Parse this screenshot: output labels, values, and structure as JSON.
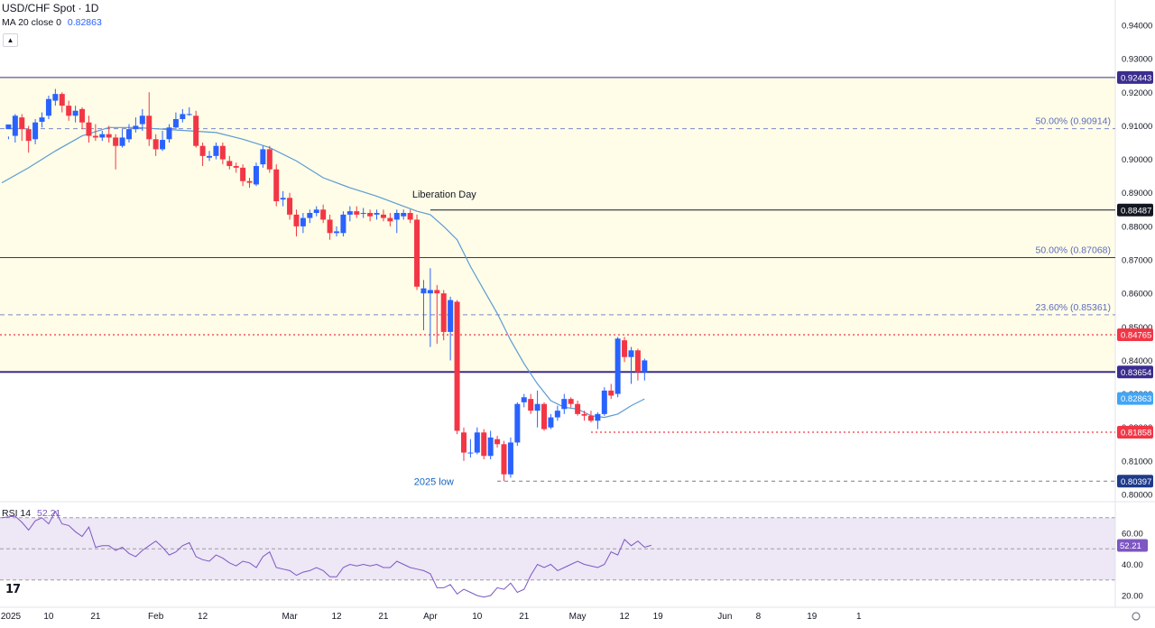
{
  "header": {
    "title": "USD/CHF Spot · 1D",
    "ma_label": "MA 20 close 0",
    "ma_value": "0.82863",
    "collapse_icon": "chevron-up-icon"
  },
  "rsi_legend": {
    "label": "RSI 14",
    "value": "52.21"
  },
  "colors": {
    "up": "#2962ff",
    "down": "#f23645",
    "ma": "#5b9bd5",
    "rsi": "#7e57c2",
    "zone_fill": "#fffde7",
    "rsi_band": "#ede7f6",
    "level_line": "#3a2d8f",
    "fib_line": "#5c6bc0",
    "dotted_red": "#f23645"
  },
  "chart_data": [
    {
      "type": "candlestick",
      "title": "USD/CHF Spot · 1D",
      "ylim": [
        0.798,
        0.944
      ],
      "y_ticks": [
        "0.94000",
        "0.93000",
        "0.92000",
        "0.91000",
        "0.90000",
        "0.89000",
        "0.88000",
        "0.87000",
        "0.86000",
        "0.85000",
        "0.84000",
        "0.83000",
        "0.82000",
        "0.81000",
        "0.80000"
      ],
      "y_tick_values": [
        0.94,
        0.93,
        0.92,
        0.91,
        0.9,
        0.89,
        0.88,
        0.87,
        0.86,
        0.85,
        0.84,
        0.83,
        0.82,
        0.81,
        0.8
      ],
      "x_ticks": [
        {
          "label": "2025",
          "d": -1
        },
        {
          "label": "10",
          "d": 6
        },
        {
          "label": "21",
          "d": 13
        },
        {
          "label": "Feb",
          "d": 22
        },
        {
          "label": "12",
          "d": 29
        },
        {
          "label": "Mar",
          "d": 42
        },
        {
          "label": "12",
          "d": 49
        },
        {
          "label": "21",
          "d": 56
        },
        {
          "label": "Apr",
          "d": 63
        },
        {
          "label": "10",
          "d": 70
        },
        {
          "label": "21",
          "d": 77
        },
        {
          "label": "May",
          "d": 85
        },
        {
          "label": "12",
          "d": 92
        },
        {
          "label": "19",
          "d": 97
        },
        {
          "label": "Jun",
          "d": 107
        },
        {
          "label": "8",
          "d": 112
        },
        {
          "label": "19",
          "d": 120
        },
        {
          "label": "1",
          "d": 127
        }
      ],
      "x_range": [
        -1,
        128
      ],
      "candles": [
        [
          0.909,
          0.9104,
          0.9068,
          0.906
        ],
        [
          0.907,
          0.913,
          0.9135,
          0.905
        ],
        [
          0.9125,
          0.909,
          0.9135,
          0.9055
        ],
        [
          0.909,
          0.9055,
          0.91,
          0.902
        ],
        [
          0.906,
          0.911,
          0.912,
          0.9045
        ],
        [
          0.9112,
          0.9125,
          0.914,
          0.9095
        ],
        [
          0.913,
          0.918,
          0.919,
          0.912
        ],
        [
          0.9175,
          0.9195,
          0.921,
          0.916
        ],
        [
          0.9195,
          0.916,
          0.92,
          0.914
        ],
        [
          0.916,
          0.913,
          0.9175,
          0.9115
        ],
        [
          0.913,
          0.9145,
          0.916,
          0.911
        ],
        [
          0.915,
          0.911,
          0.9155,
          0.909
        ],
        [
          0.911,
          0.907,
          0.913,
          0.905
        ],
        [
          0.907,
          0.9065,
          0.9105,
          0.9055
        ],
        [
          0.9065,
          0.9075,
          0.9085,
          0.9055
        ],
        [
          0.9075,
          0.9065,
          0.91,
          0.905
        ],
        [
          0.9065,
          0.904,
          0.9075,
          0.897
        ],
        [
          0.904,
          0.9065,
          0.909,
          0.9035
        ],
        [
          0.906,
          0.909,
          0.9105,
          0.905
        ],
        [
          0.909,
          0.91,
          0.9125,
          0.908
        ],
        [
          0.9105,
          0.913,
          0.915,
          0.9085
        ],
        [
          0.913,
          0.906,
          0.92,
          0.904
        ],
        [
          0.906,
          0.903,
          0.9075,
          0.901
        ],
        [
          0.903,
          0.9058,
          0.9085,
          0.9025
        ],
        [
          0.906,
          0.9095,
          0.9105,
          0.905
        ],
        [
          0.9095,
          0.912,
          0.914,
          0.909
        ],
        [
          0.912,
          0.9135,
          0.915,
          0.911
        ],
        [
          0.9135,
          0.9135,
          0.9155,
          0.913
        ],
        [
          0.913,
          0.904,
          0.9145,
          0.9035
        ],
        [
          0.904,
          0.901,
          0.905,
          0.898
        ],
        [
          0.9005,
          0.901,
          0.9025,
          0.8995
        ],
        [
          0.901,
          0.904,
          0.905,
          0.9
        ],
        [
          0.904,
          0.9,
          0.905,
          0.8985
        ],
        [
          0.8995,
          0.898,
          0.901,
          0.897
        ],
        [
          0.898,
          0.8975,
          0.899,
          0.896
        ],
        [
          0.8975,
          0.8935,
          0.8985,
          0.892
        ],
        [
          0.8935,
          0.893,
          0.8945,
          0.8915
        ],
        [
          0.8925,
          0.898,
          0.899,
          0.892
        ],
        [
          0.8985,
          0.903,
          0.904,
          0.8975
        ],
        [
          0.903,
          0.897,
          0.904,
          0.896
        ],
        [
          0.897,
          0.8875,
          0.8985,
          0.886
        ],
        [
          0.888,
          0.8885,
          0.8905,
          0.886
        ],
        [
          0.8885,
          0.8835,
          0.89,
          0.882
        ],
        [
          0.8835,
          0.88,
          0.885,
          0.877
        ],
        [
          0.88,
          0.8825,
          0.884,
          0.878
        ],
        [
          0.8825,
          0.884,
          0.885,
          0.881
        ],
        [
          0.884,
          0.885,
          0.886,
          0.883
        ],
        [
          0.885,
          0.882,
          0.8865,
          0.881
        ],
        [
          0.882,
          0.878,
          0.8835,
          0.876
        ],
        [
          0.878,
          0.8785,
          0.88,
          0.877
        ],
        [
          0.878,
          0.8835,
          0.8845,
          0.877
        ],
        [
          0.8835,
          0.8845,
          0.886,
          0.8815
        ],
        [
          0.8845,
          0.8835,
          0.886,
          0.8825
        ],
        [
          0.884,
          0.884,
          0.8855,
          0.8825
        ],
        [
          0.884,
          0.883,
          0.885,
          0.8815
        ],
        [
          0.8835,
          0.884,
          0.885,
          0.882
        ],
        [
          0.8835,
          0.8825,
          0.885,
          0.8815
        ],
        [
          0.8825,
          0.8815,
          0.884,
          0.88
        ],
        [
          0.882,
          0.884,
          0.885,
          0.878
        ],
        [
          0.883,
          0.884,
          0.885,
          0.882
        ],
        [
          0.884,
          0.882,
          0.885,
          0.881
        ],
        [
          0.882,
          0.862,
          0.8835,
          0.861
        ],
        [
          0.86,
          0.8615,
          0.864,
          0.849
        ],
        [
          0.86,
          0.861,
          0.8675,
          0.844
        ],
        [
          0.861,
          0.86,
          0.8625,
          0.845
        ],
        [
          0.86,
          0.8485,
          0.861,
          0.846
        ],
        [
          0.8485,
          0.858,
          0.859,
          0.84
        ],
        [
          0.8575,
          0.819,
          0.858,
          0.818
        ],
        [
          0.8185,
          0.8125,
          0.82,
          0.81
        ],
        [
          0.8125,
          0.8125,
          0.8165,
          0.811
        ],
        [
          0.8125,
          0.8185,
          0.82,
          0.812
        ],
        [
          0.8185,
          0.8115,
          0.8195,
          0.8105
        ],
        [
          0.8115,
          0.817,
          0.819,
          0.8105
        ],
        [
          0.8165,
          0.815,
          0.8175,
          0.814
        ],
        [
          0.815,
          0.806,
          0.816,
          0.804
        ],
        [
          0.806,
          0.8155,
          0.817,
          0.805
        ],
        [
          0.8155,
          0.827,
          0.8275,
          0.8145
        ],
        [
          0.8275,
          0.829,
          0.83,
          0.826
        ],
        [
          0.8285,
          0.825,
          0.83,
          0.824
        ],
        [
          0.825,
          0.827,
          0.831,
          0.82
        ],
        [
          0.827,
          0.8195,
          0.8275,
          0.819
        ],
        [
          0.82,
          0.823,
          0.824,
          0.8195
        ],
        [
          0.823,
          0.825,
          0.8265,
          0.822
        ],
        [
          0.8255,
          0.8285,
          0.83,
          0.824
        ],
        [
          0.8285,
          0.827,
          0.829,
          0.826
        ],
        [
          0.827,
          0.824,
          0.828,
          0.8235
        ],
        [
          0.824,
          0.8235,
          0.825,
          0.822
        ],
        [
          0.8235,
          0.822,
          0.825,
          0.8215
        ],
        [
          0.822,
          0.824,
          0.8245,
          0.8195
        ],
        [
          0.824,
          0.831,
          0.832,
          0.8235
        ],
        [
          0.831,
          0.8295,
          0.833,
          0.8285
        ],
        [
          0.83,
          0.8465,
          0.847,
          0.829
        ],
        [
          0.846,
          0.841,
          0.847,
          0.8395
        ],
        [
          0.841,
          0.843,
          0.844,
          0.833
        ],
        [
          0.843,
          0.8365,
          0.8435,
          0.834
        ],
        [
          0.8365,
          0.84,
          0.8405,
          0.834
        ]
      ],
      "ma20_points": [
        [
          -1,
          0.893
        ],
        [
          3,
          0.8975
        ],
        [
          7,
          0.9025
        ],
        [
          11,
          0.907
        ],
        [
          15,
          0.9095
        ],
        [
          19,
          0.9095
        ],
        [
          23,
          0.909
        ],
        [
          27,
          0.9085
        ],
        [
          31,
          0.908
        ],
        [
          35,
          0.906
        ],
        [
          39,
          0.9035
        ],
        [
          43,
          0.8995
        ],
        [
          47,
          0.8945
        ],
        [
          51,
          0.8915
        ],
        [
          55,
          0.889
        ],
        [
          59,
          0.886
        ],
        [
          61,
          0.8845
        ],
        [
          63,
          0.8835
        ],
        [
          65,
          0.88
        ],
        [
          67,
          0.876
        ],
        [
          69,
          0.868
        ],
        [
          71,
          0.861
        ],
        [
          73,
          0.854
        ],
        [
          75,
          0.846
        ],
        [
          77,
          0.839
        ],
        [
          79,
          0.833
        ],
        [
          81,
          0.828
        ],
        [
          83,
          0.826
        ],
        [
          85,
          0.8255
        ],
        [
          87,
          0.8235
        ],
        [
          89,
          0.823
        ],
        [
          91,
          0.824
        ],
        [
          93,
          0.8265
        ],
        [
          95,
          0.8285
        ]
      ],
      "levels": [
        {
          "value": 0.92443,
          "label": "0.92443",
          "kind": "solid",
          "color": "#3a2d8f",
          "tag_bg": "#3a2d8f",
          "x_start": -1
        },
        {
          "value": 0.88487,
          "label": "0.88487",
          "kind": "solid",
          "color": "#131722",
          "tag_bg": "#131722",
          "x_start": 63
        },
        {
          "value": 0.87068,
          "label": "",
          "kind": "solid",
          "color": "#3a2d8f",
          "tag_bg": "",
          "x_start": -1
        },
        {
          "value": 0.84765,
          "label": "0.84765",
          "kind": "dotted",
          "color": "#f23645",
          "tag_bg": "#f23645",
          "x_start": -1
        },
        {
          "value": 0.83654,
          "label": "0.83654",
          "kind": "thick",
          "color": "#3a2d8f",
          "tag_bg": "#3a2d8f",
          "x_start": -1
        },
        {
          "value": 0.81858,
          "label": "0.81858",
          "kind": "dotted",
          "color": "#f23645",
          "tag_bg": "#f23645",
          "x_start": 87
        },
        {
          "value": 0.80397,
          "label": "0.80397",
          "kind": "dashed",
          "color": "#787b86",
          "tag_bg": "#1e3a8a",
          "x_start": 73
        }
      ],
      "fib_levels": [
        {
          "value": 0.90914,
          "text": "50.00% (0.90914)"
        },
        {
          "value": 0.87068,
          "text": "50.00% (0.87068)"
        },
        {
          "value": 0.85361,
          "text": "23.60% (0.85361)"
        }
      ],
      "zones": [
        {
          "from": 0.92443,
          "to": 0.87068
        },
        {
          "from": 0.87068,
          "to": 0.83654
        }
      ],
      "annotations": [
        {
          "text": "Liberation Day",
          "x": 63,
          "y": 0.887
        },
        {
          "text": "2025 low",
          "x": 70,
          "y": 0.80397
        }
      ],
      "ma_tag": {
        "value": 0.82863,
        "label": "0.82863"
      }
    },
    {
      "type": "line",
      "title": "RSI 14",
      "ylim": [
        15,
        75
      ],
      "y_ticks": [
        "60.00",
        "40.00",
        "20.00"
      ],
      "y_tick_values": [
        60,
        40,
        20
      ],
      "band": [
        30,
        70
      ],
      "midline": 50,
      "last_value": 52.21,
      "last_label": "52.21",
      "points": [
        [
          -1,
          70
        ],
        [
          1,
          71
        ],
        [
          2,
          67
        ],
        [
          3,
          62
        ],
        [
          4,
          68
        ],
        [
          5,
          70
        ],
        [
          6,
          66
        ],
        [
          7,
          74
        ],
        [
          8,
          66
        ],
        [
          9,
          65
        ],
        [
          10,
          61
        ],
        [
          11,
          58
        ],
        [
          12,
          64
        ],
        [
          13,
          51
        ],
        [
          14,
          52
        ],
        [
          15,
          52
        ],
        [
          16,
          49
        ],
        [
          17,
          51
        ],
        [
          18,
          47
        ],
        [
          19,
          45
        ],
        [
          20,
          49
        ],
        [
          21,
          52
        ],
        [
          22,
          55
        ],
        [
          23,
          51
        ],
        [
          24,
          46
        ],
        [
          25,
          48
        ],
        [
          26,
          52
        ],
        [
          27,
          54
        ],
        [
          28,
          45
        ],
        [
          29,
          43
        ],
        [
          30,
          42
        ],
        [
          31,
          46
        ],
        [
          32,
          44
        ],
        [
          33,
          41
        ],
        [
          34,
          39
        ],
        [
          35,
          42
        ],
        [
          36,
          41
        ],
        [
          37,
          38
        ],
        [
          38,
          45
        ],
        [
          39,
          48
        ],
        [
          40,
          38
        ],
        [
          41,
          37
        ],
        [
          42,
          36
        ],
        [
          43,
          33
        ],
        [
          44,
          35
        ],
        [
          45,
          36
        ],
        [
          46,
          38
        ],
        [
          47,
          36
        ],
        [
          48,
          32
        ],
        [
          49,
          32
        ],
        [
          50,
          38
        ],
        [
          51,
          40
        ],
        [
          52,
          39
        ],
        [
          53,
          40
        ],
        [
          54,
          39
        ],
        [
          55,
          40
        ],
        [
          56,
          38
        ],
        [
          57,
          38
        ],
        [
          58,
          42
        ],
        [
          59,
          40
        ],
        [
          60,
          38
        ],
        [
          61,
          37
        ],
        [
          62,
          36
        ],
        [
          63,
          34
        ],
        [
          64,
          25
        ],
        [
          65,
          25
        ],
        [
          66,
          27
        ],
        [
          67,
          21
        ],
        [
          68,
          24
        ],
        [
          69,
          22
        ],
        [
          70,
          20
        ],
        [
          71,
          19
        ],
        [
          72,
          20
        ],
        [
          73,
          25
        ],
        [
          74,
          24
        ],
        [
          75,
          28
        ],
        [
          76,
          22
        ],
        [
          77,
          24
        ],
        [
          78,
          33
        ],
        [
          79,
          40
        ],
        [
          80,
          38
        ],
        [
          81,
          40
        ],
        [
          82,
          36
        ],
        [
          83,
          38
        ],
        [
          84,
          40
        ],
        [
          85,
          42
        ],
        [
          86,
          40
        ],
        [
          87,
          39
        ],
        [
          88,
          38
        ],
        [
          89,
          40
        ],
        [
          90,
          48
        ],
        [
          91,
          46
        ],
        [
          92,
          56
        ],
        [
          93,
          52
        ],
        [
          94,
          55
        ],
        [
          95,
          51
        ],
        [
          96,
          52.21
        ]
      ]
    }
  ]
}
